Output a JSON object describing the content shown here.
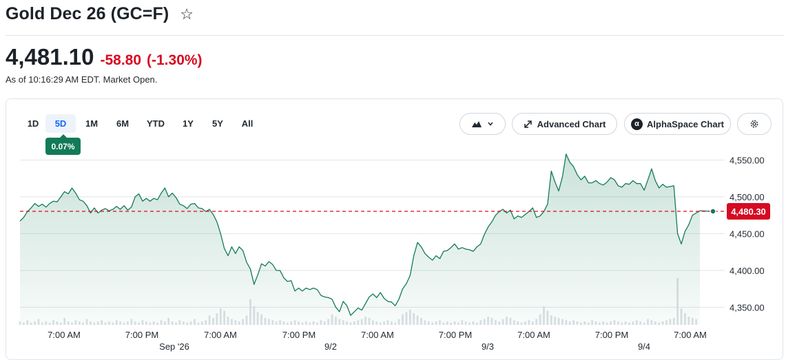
{
  "header": {
    "title": "Gold Dec 26 (GC=F)",
    "star_icon": "☆",
    "price": "4,481.10",
    "change": "-58.80",
    "change_pct": "(-1.30%)",
    "as_of": "As of 10:16:29 AM EDT. Market Open.",
    "change_color": "#d60a22"
  },
  "toolbar": {
    "ranges": [
      "1D",
      "5D",
      "1M",
      "6M",
      "YTD",
      "1Y",
      "5Y",
      "All"
    ],
    "active_range": "5D",
    "period_change_badge": "0.07%",
    "chart_type_icon": "mountain-chart-icon",
    "advanced_chart_label": "Advanced Chart",
    "alphaspace_label": "AlphaSpace Chart",
    "alphaspace_icon": "α",
    "settings_icon": "gear-icon"
  },
  "chart_data": {
    "type": "area",
    "line_color": "#127a58",
    "reference_line_color": "#d60a22",
    "reference_value": 4480.3,
    "last_price_label": "4,480.30",
    "ylim": [
      4326,
      4571
    ],
    "yticks": [
      4350,
      4400,
      4450,
      4500,
      4550
    ],
    "ytick_labels": [
      "4,350.00",
      "4,400.00",
      "4,450.00",
      "4,500.00",
      "4,550.00"
    ],
    "x_tick_labels": [
      "7:00 AM",
      "7:00 PM",
      "7:00 AM",
      "7:00 PM",
      "7:00 AM",
      "7:00 PM",
      "7:00 AM",
      "7:00 PM",
      "7:00 AM"
    ],
    "date_labels": [
      "Sep '26",
      "9/2",
      "9/3",
      "9/4"
    ],
    "grid": true,
    "series": [
      {
        "values": [
          4467,
          4472,
          4480,
          4485,
          4491,
          4487,
          4490,
          4486,
          4491,
          4494,
          4493,
          4500,
          4507,
          4504,
          4512,
          4505,
          4496,
          4494,
          4488,
          4478,
          4485,
          4478,
          4482,
          4484,
          4481,
          4483,
          4487,
          4483,
          4488,
          4482,
          4486,
          4500,
          4504,
          4494,
          4498,
          4494,
          4498,
          4496,
          4505,
          4512,
          4500,
          4505,
          4499,
          4490,
          4488,
          4484,
          4490,
          4491,
          4485,
          4484,
          4480,
          4483,
          4476,
          4466,
          4450,
          4430,
          4420,
          4432,
          4423,
          4432,
          4427,
          4411,
          4402,
          4381,
          4394,
          4409,
          4406,
          4412,
          4408,
          4400,
          4400,
          4390,
          4385,
          4386,
          4372,
          4376,
          4372,
          4376,
          4374,
          4376,
          4374,
          4366,
          4364,
          4363,
          4361,
          4350,
          4344,
          4358,
          4352,
          4339,
          4344,
          4349,
          4346,
          4355,
          4364,
          4368,
          4363,
          4370,
          4362,
          4358,
          4357,
          4352,
          4361,
          4375,
          4382,
          4393,
          4420,
          4438,
          4432,
          4423,
          4418,
          4414,
          4420,
          4416,
          4426,
          4427,
          4431,
          4436,
          4429,
          4431,
          4429,
          4428,
          4426,
          4432,
          4436,
          4449,
          4459,
          4466,
          4475,
          4480,
          4483,
          4478,
          4482,
          4470,
          4474,
          4472,
          4476,
          4480,
          4485,
          4472,
          4474,
          4480,
          4490,
          4535,
          4520,
          4508,
          4527,
          4558,
          4547,
          4541,
          4530,
          4523,
          4528,
          4519,
          4519,
          4522,
          4518,
          4516,
          4520,
          4526,
          4523,
          4515,
          4513,
          4518,
          4517,
          4522,
          4518,
          4518,
          4509,
          4523,
          4538,
          4522,
          4512,
          4517,
          4513,
          4514,
          4515,
          4450,
          4436,
          4453,
          4462,
          4475,
          4478,
          4481
        ]
      }
    ],
    "volume": [
      3,
      2,
      4,
      2,
      3,
      5,
      2,
      3,
      2,
      4,
      3,
      2,
      6,
      3,
      2,
      4,
      3,
      2,
      5,
      3,
      2,
      3,
      4,
      2,
      3,
      2,
      4,
      3,
      2,
      3,
      5,
      3,
      2,
      4,
      3,
      2,
      3,
      2,
      4,
      3,
      6,
      3,
      2,
      4,
      3,
      2,
      3,
      5,
      2,
      3,
      4,
      8,
      6,
      10,
      14,
      12,
      7,
      5,
      4,
      3,
      5,
      8,
      22,
      16,
      11,
      9,
      6,
      5,
      4,
      3,
      4,
      3,
      2,
      3,
      4,
      3,
      2,
      3,
      2,
      3,
      2,
      4,
      3,
      5,
      9,
      7,
      5,
      4,
      3,
      2,
      3,
      4,
      5,
      7,
      6,
      4,
      3,
      2,
      3,
      4,
      3,
      2,
      5,
      9,
      11,
      13,
      10,
      8,
      6,
      4,
      3,
      2,
      3,
      4,
      2,
      3,
      2,
      3,
      2,
      4,
      3,
      2,
      3,
      2,
      4,
      5,
      7,
      6,
      4,
      3,
      5,
      7,
      6,
      4,
      3,
      2,
      3,
      4,
      3,
      5,
      9,
      16,
      12,
      8,
      7,
      6,
      5,
      4,
      3,
      4,
      3,
      2,
      3,
      2,
      4,
      3,
      2,
      3,
      2,
      3,
      4,
      3,
      2,
      3,
      2,
      3,
      4,
      3,
      2,
      5,
      4,
      3,
      2,
      3,
      4,
      5,
      6,
      40,
      14,
      10,
      7,
      6,
      5
    ]
  }
}
